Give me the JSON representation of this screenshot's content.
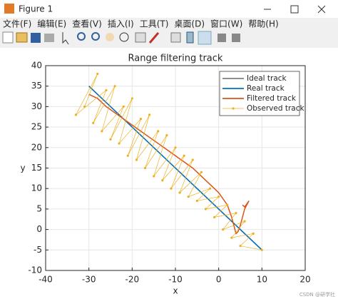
{
  "window": {
    "title": "Figure 1",
    "menu": [
      "文件(F)",
      "编辑(E)",
      "查看(V)",
      "插入(I)",
      "工具(T)",
      "桌面(D)",
      "窗口(W)",
      "帮助(H)"
    ],
    "watermark": "CSDN @研学社"
  },
  "chart_data": {
    "type": "line",
    "title": "Range filtering track",
    "x_label": "x",
    "y_label": "y",
    "xlim": [
      -40,
      20
    ],
    "xticks": [
      -40,
      -30,
      -20,
      -10,
      0,
      10,
      20
    ],
    "ylim": [
      -10,
      40
    ],
    "yticks": [
      -10,
      -5,
      0,
      5,
      10,
      15,
      20,
      25,
      30,
      35,
      40
    ],
    "grid": true,
    "legend": "upper right",
    "series": [
      {
        "name": "Ideal track",
        "color": "#7f7f7f",
        "x": [
          -30,
          10
        ],
        "y": [
          35,
          -5
        ]
      },
      {
        "name": "Real track",
        "color": "#0072bd",
        "x": [
          -30,
          10
        ],
        "y": [
          35,
          -5
        ]
      },
      {
        "name": "Filtered track",
        "color": "#d95319",
        "x": [
          -30,
          -28,
          -26,
          -24,
          -22,
          -20,
          -18,
          -16,
          -14,
          -12,
          -10,
          -8,
          -6,
          -4,
          -2,
          0,
          2,
          3,
          3.5,
          4,
          4.5,
          5,
          5.5,
          6,
          7,
          6,
          5.5
        ],
        "y": [
          33,
          32,
          30,
          28.5,
          27,
          25.5,
          24,
          22.5,
          21,
          19.5,
          18,
          16.5,
          15,
          13,
          11,
          9,
          6,
          3,
          1,
          -1,
          -0.5,
          1,
          3,
          5,
          7,
          5.5,
          6
        ]
      },
      {
        "name": "Observed track",
        "color": "#edb120",
        "marker": true,
        "x": [
          -31,
          -28,
          -33,
          -26,
          -29,
          -24,
          -27,
          -22,
          -25,
          -20,
          -23,
          -18,
          -21,
          -16,
          -19,
          -14,
          -17,
          -12,
          -15,
          -10,
          -13,
          -8,
          -11,
          -6,
          -9,
          -4,
          -7,
          -2,
          -5,
          0,
          -3,
          2,
          -1,
          4,
          1,
          6,
          3,
          8,
          5,
          10
        ],
        "y": [
          30,
          38,
          28,
          34,
          26,
          35,
          24,
          30,
          22,
          32,
          21,
          27,
          18,
          28,
          17,
          24,
          15,
          23,
          13,
          20,
          12,
          18,
          10,
          17,
          9,
          14,
          8,
          10,
          7,
          8,
          5,
          6,
          3,
          4,
          0,
          2,
          -2,
          -1,
          -4,
          -5
        ]
      }
    ]
  }
}
